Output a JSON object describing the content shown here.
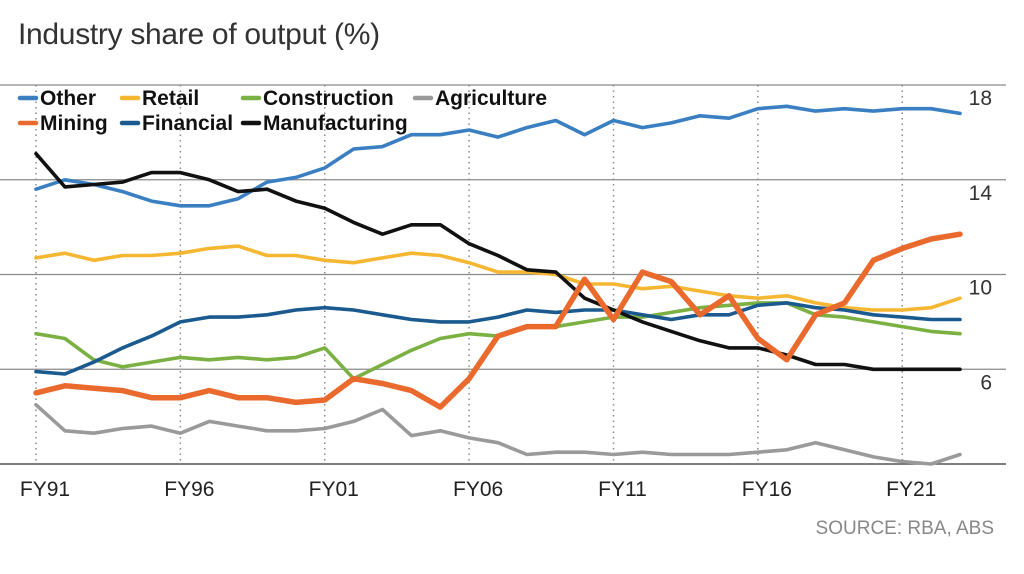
{
  "chart_data": {
    "type": "line",
    "title": "Industry share of output (%)",
    "source": "SOURCE: RBA, ABS",
    "x": [
      1991,
      1992,
      1993,
      1994,
      1995,
      1996,
      1997,
      1998,
      1999,
      2000,
      2001,
      2002,
      2003,
      2004,
      2005,
      2006,
      2007,
      2008,
      2009,
      2010,
      2011,
      2012,
      2013,
      2014,
      2015,
      2016,
      2017,
      2018,
      2019,
      2020,
      2021,
      2022,
      2023
    ],
    "x_ticks": [
      {
        "value": 1991,
        "label": "FY91"
      },
      {
        "value": 1996,
        "label": "FY96"
      },
      {
        "value": 2001,
        "label": "FY01"
      },
      {
        "value": 2006,
        "label": "FY06"
      },
      {
        "value": 2011,
        "label": "FY11"
      },
      {
        "value": 2016,
        "label": "FY16"
      },
      {
        "value": 2021,
        "label": "FY21"
      }
    ],
    "xlim": [
      1991,
      2023
    ],
    "ylim": [
      2,
      18
    ],
    "y_ticks": [
      6,
      10,
      14,
      18
    ],
    "y_axis_side": "right",
    "grid": "horizontal solid, vertical dotted",
    "legend_placement": "top-left",
    "series": [
      {
        "name": "Other",
        "color": "#3a7fc1",
        "legend_row": 0,
        "values": [
          13.6,
          14.0,
          13.8,
          13.5,
          13.1,
          12.9,
          12.9,
          13.2,
          13.9,
          14.1,
          14.5,
          15.3,
          15.4,
          15.9,
          15.9,
          16.1,
          15.8,
          16.2,
          16.5,
          15.9,
          16.5,
          16.2,
          16.4,
          16.7,
          16.6,
          17.0,
          17.1,
          16.9,
          17.0,
          16.9,
          17.0,
          17.0,
          16.8
        ]
      },
      {
        "name": "Retail",
        "color": "#f5b731",
        "legend_row": 0,
        "values": [
          10.7,
          10.9,
          10.6,
          10.8,
          10.8,
          10.9,
          11.1,
          11.2,
          10.8,
          10.8,
          10.6,
          10.5,
          10.7,
          10.9,
          10.8,
          10.5,
          10.1,
          10.1,
          10.0,
          9.6,
          9.6,
          9.4,
          9.5,
          9.3,
          9.1,
          9.0,
          9.1,
          8.8,
          8.6,
          8.5,
          8.5,
          8.6,
          9.0
        ]
      },
      {
        "name": "Construction",
        "color": "#7bb043",
        "legend_row": 0,
        "values": [
          7.5,
          7.3,
          6.4,
          6.1,
          6.3,
          6.5,
          6.4,
          6.5,
          6.4,
          6.5,
          6.9,
          5.6,
          6.2,
          6.8,
          7.3,
          7.5,
          7.4,
          7.8,
          7.8,
          8.0,
          8.2,
          8.2,
          8.4,
          8.6,
          8.7,
          8.8,
          8.8,
          8.3,
          8.2,
          8.0,
          7.8,
          7.6,
          7.5
        ]
      },
      {
        "name": "Agriculture",
        "color": "#9a9a9a",
        "legend_row": 0,
        "values": [
          4.5,
          3.4,
          3.3,
          3.5,
          3.6,
          3.3,
          3.8,
          3.6,
          3.4,
          3.4,
          3.5,
          3.8,
          4.3,
          3.2,
          3.4,
          3.1,
          2.9,
          2.4,
          2.5,
          2.5,
          2.4,
          2.5,
          2.4,
          2.4,
          2.4,
          2.5,
          2.6,
          2.9,
          2.6,
          2.3,
          2.1,
          2.0,
          2.4
        ]
      },
      {
        "name": "Mining",
        "color": "#ea6a2e",
        "legend_row": 1,
        "values": [
          5.0,
          5.3,
          5.2,
          5.1,
          4.8,
          4.8,
          5.1,
          4.8,
          4.8,
          4.6,
          4.7,
          5.6,
          5.4,
          5.1,
          4.4,
          5.6,
          7.4,
          7.8,
          7.8,
          9.8,
          8.1,
          10.1,
          9.7,
          8.3,
          9.1,
          7.3,
          6.4,
          8.3,
          8.8,
          10.6,
          11.1,
          11.5,
          11.7
        ]
      },
      {
        "name": "Financial",
        "color": "#1a5a8e",
        "legend_row": 1,
        "values": [
          5.9,
          5.8,
          6.3,
          6.9,
          7.4,
          8.0,
          8.2,
          8.2,
          8.3,
          8.5,
          8.6,
          8.5,
          8.3,
          8.1,
          8.0,
          8.0,
          8.2,
          8.5,
          8.4,
          8.5,
          8.5,
          8.3,
          8.1,
          8.3,
          8.3,
          8.7,
          8.8,
          8.6,
          8.5,
          8.3,
          8.2,
          8.1,
          8.1
        ]
      },
      {
        "name": "Manufacturing",
        "color": "#111111",
        "legend_row": 1,
        "values": [
          15.1,
          13.7,
          13.8,
          13.9,
          14.3,
          14.3,
          14.0,
          13.5,
          13.6,
          13.1,
          12.8,
          12.2,
          11.7,
          12.1,
          12.1,
          11.3,
          10.8,
          10.2,
          10.1,
          9.0,
          8.5,
          8.0,
          7.6,
          7.2,
          6.9,
          6.9,
          6.6,
          6.2,
          6.2,
          6.0,
          6.0,
          6.0,
          6.0
        ]
      }
    ]
  }
}
